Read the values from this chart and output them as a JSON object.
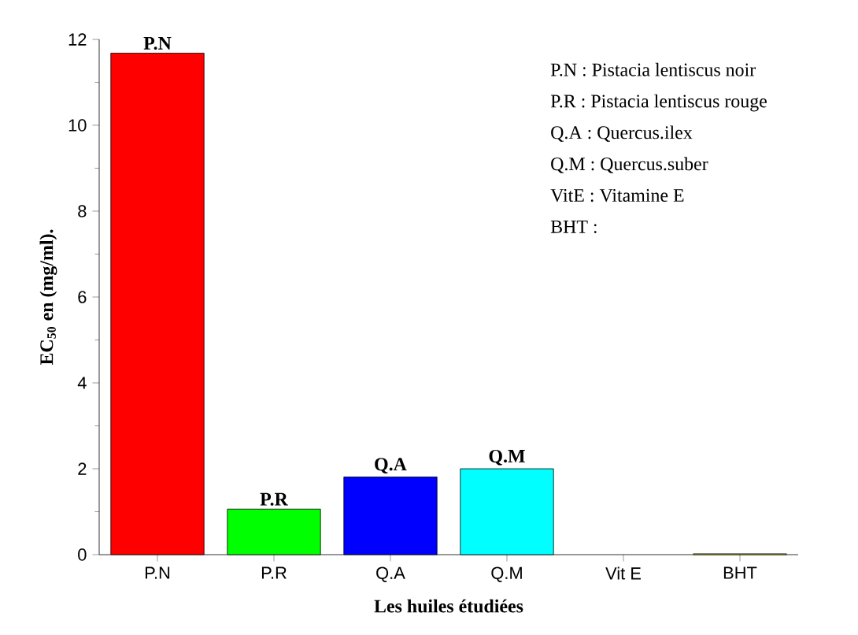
{
  "chart_data": {
    "type": "bar",
    "categories": [
      "P.N",
      "P.R",
      "Q.A",
      "Q.M",
      "Vit E",
      "BHT"
    ],
    "values": [
      11.68,
      1.06,
      1.81,
      2.0,
      null,
      0.02
    ],
    "colors": [
      "#ff0000",
      "#00ff00",
      "#0000ff",
      "#00ffff",
      "#ff00ff",
      "#ffff00"
    ],
    "xlabel": "Les huiles étudiées",
    "ylabel": "**EC$_{50}$ en (mg/ml).**",
    "ylim": [
      0,
      12
    ],
    "yticks": [
      0,
      2,
      4,
      6,
      8,
      10,
      12
    ],
    "annotations": [
      {
        "text": "P.N",
        "x": "P.N",
        "y": 11.68
      },
      {
        "text": "P.R",
        "x": "P.R",
        "y": 1.06
      },
      {
        "text": "Q.A",
        "x": "Q.A",
        "y": 1.81
      },
      {
        "text": "Q.M",
        "x": "Q.M",
        "y": 2.0
      },
      "P.N : Pistacia lentiscus noir",
      "P.R : Pistacia lentiscus rouge",
      "Q.A : Quercus.ilex",
      "Q.M : Quercus.suber",
      "VitE : Vitamine E",
      "BHT :"
    ]
  }
}
